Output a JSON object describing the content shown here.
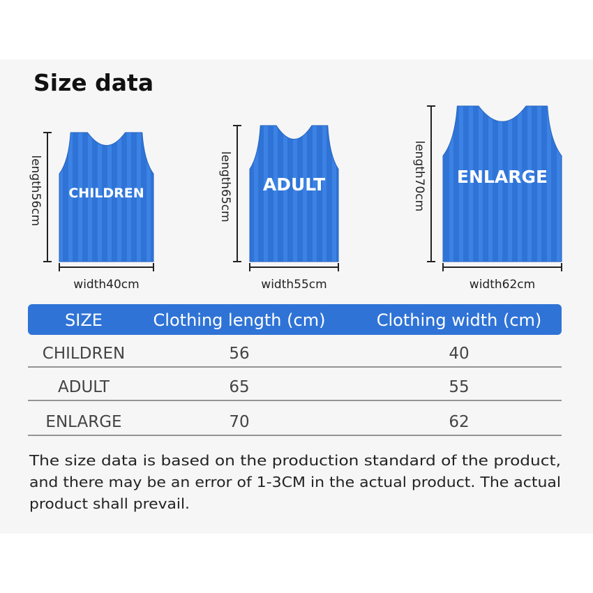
{
  "header": {
    "title": "Size data"
  },
  "garments": [
    {
      "label": "CHILDREN",
      "length": "length56cm",
      "width": "width40cm"
    },
    {
      "label": "ADULT",
      "length": "length65cm",
      "width": "width55cm"
    },
    {
      "label": "ENLARGE",
      "length": "length70cm",
      "width": "width62cm"
    }
  ],
  "table": {
    "columns": [
      "SIZE",
      "Clothing length (cm)",
      "Clothing width (cm)"
    ],
    "rows": [
      [
        "CHILDREN",
        "56",
        "40"
      ],
      [
        "ADULT",
        "65",
        "55"
      ],
      [
        "ENLARGE",
        "70",
        "62"
      ]
    ]
  },
  "note": [
    "The size data is based on the production standard of the product,",
    "and there may be an error of 1-3CM in the actual product. The actual",
    "product shall prevail."
  ]
}
